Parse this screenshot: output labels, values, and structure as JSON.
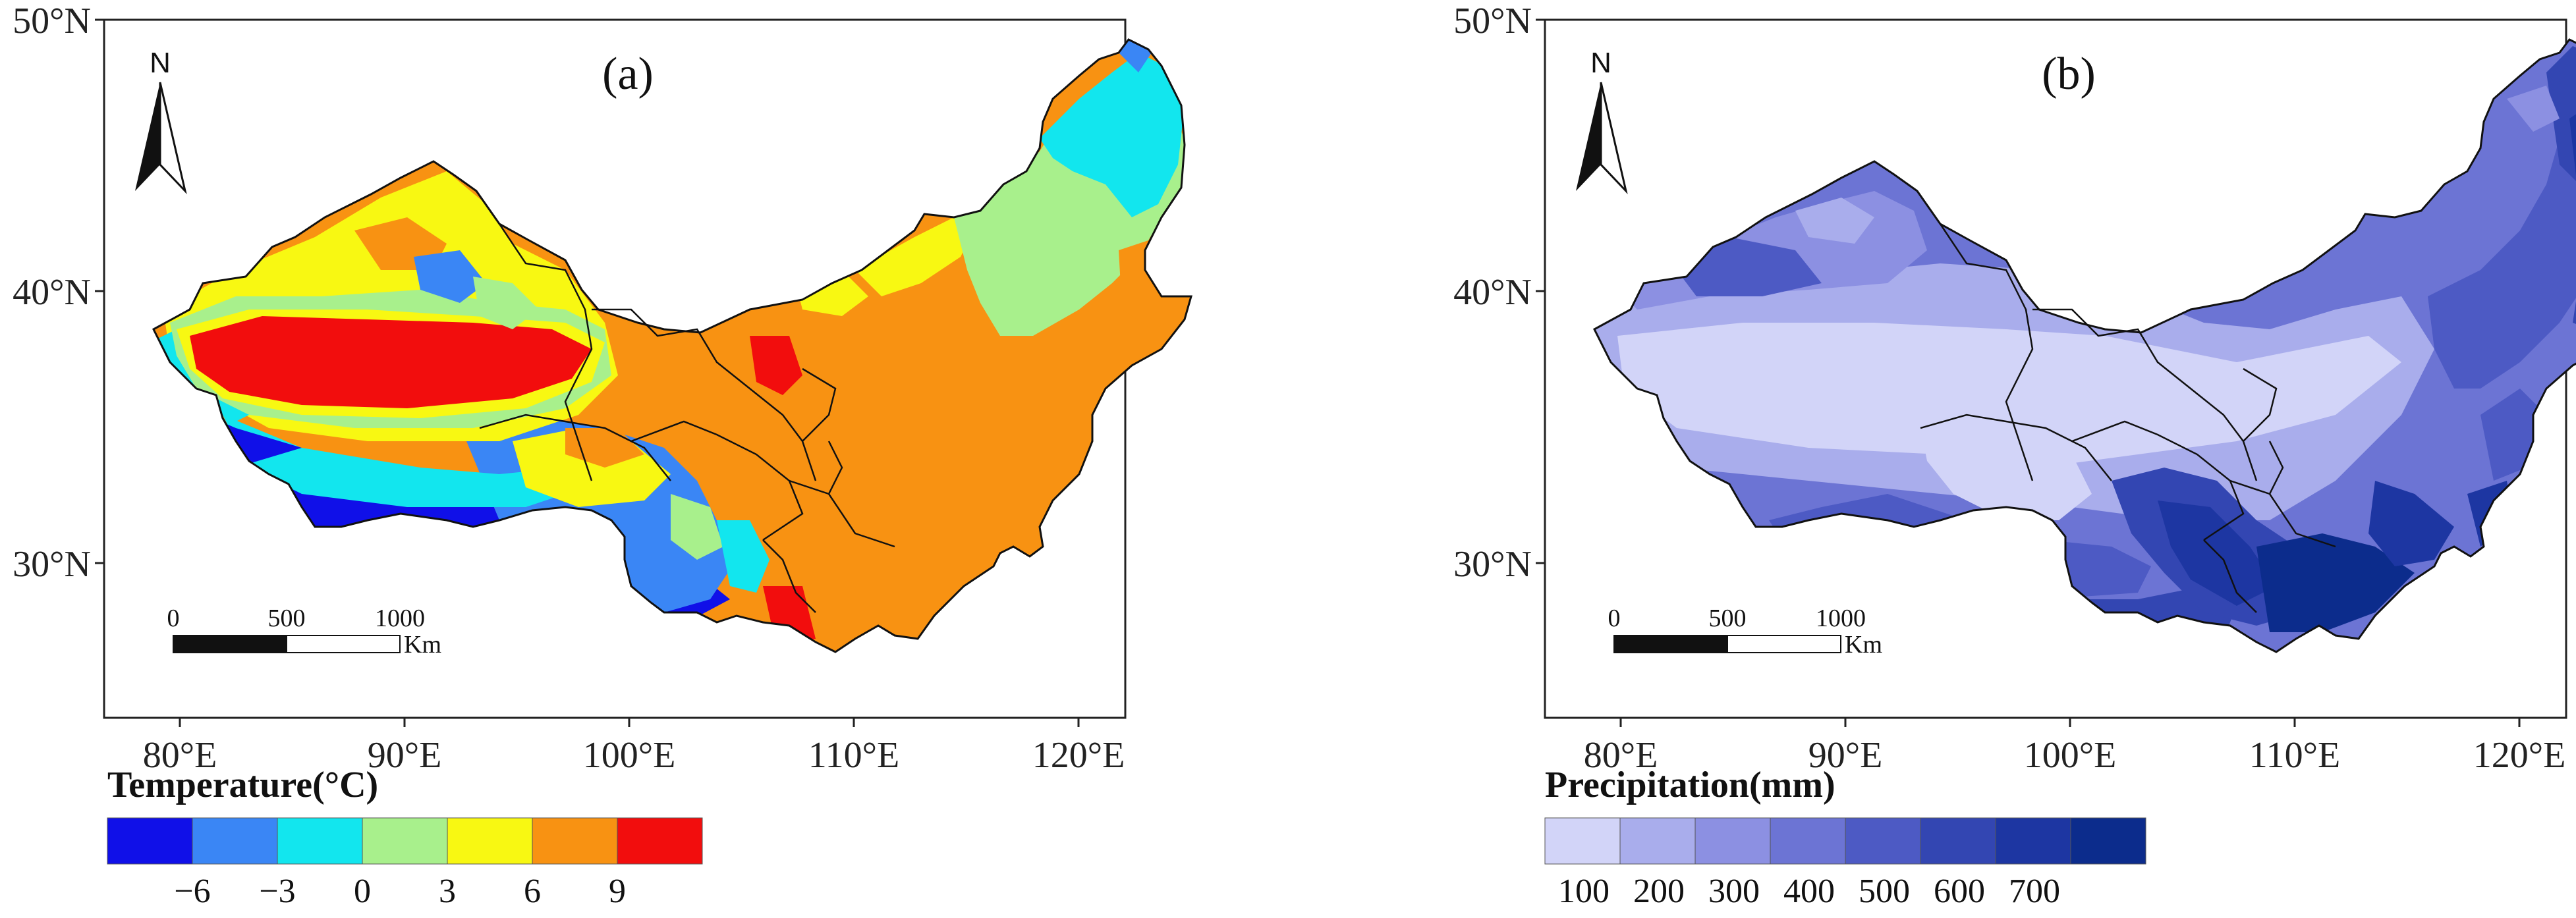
{
  "maps": [
    {
      "id": "a",
      "panel_label": "(a)",
      "lat_labels": [
        "50°N",
        "40°N",
        "30°N"
      ],
      "lon_labels": [
        "80°E",
        "90°E",
        "100°E",
        "110°E",
        "120°E"
      ],
      "north": "N",
      "scale": {
        "labels": [
          "0",
          "500",
          "1000"
        ],
        "unit": "Km"
      },
      "legend": {
        "title": "Temperature(°C)",
        "colors": [
          "#1010e8",
          "#3a86f5",
          "#12e6ee",
          "#a8f08c",
          "#f8f812",
          "#f89212",
          "#f20d0d"
        ],
        "tick_labels": [
          "−6",
          "−3",
          "0",
          "3",
          "6",
          "9"
        ]
      }
    },
    {
      "id": "b",
      "panel_label": "(b)",
      "lat_labels": [
        "50°N",
        "40°N",
        "30°N"
      ],
      "lon_labels": [
        "80°E",
        "90°E",
        "100°E",
        "110°E",
        "120°E"
      ],
      "north": "N",
      "scale": {
        "labels": [
          "0",
          "500",
          "1000"
        ],
        "unit": "Km"
      },
      "legend": {
        "title": "Precipitation(mm)",
        "colors": [
          "#d2d4f8",
          "#a9adec",
          "#8c90e2",
          "#6c74d4",
          "#4d5ac4",
          "#3346b2",
          "#1d36a2",
          "#0c2c8c"
        ],
        "tick_labels": [
          "100",
          "200",
          "300",
          "400",
          "500",
          "600",
          "700"
        ]
      }
    }
  ]
}
